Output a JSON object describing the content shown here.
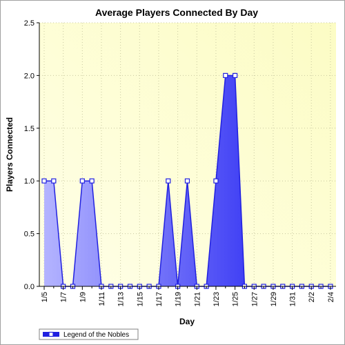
{
  "chart_data": {
    "type": "area",
    "title": "Average Players Connected By Day",
    "xlabel": "Day",
    "ylabel": "Players Connected",
    "ylim": [
      0,
      2.5
    ],
    "yticks": [
      "0.0",
      "0.5",
      "1.0",
      "1.5",
      "2.0",
      "2.5"
    ],
    "grid": true,
    "legend_position": "bottom-left",
    "x": [
      "1/5",
      "1/6",
      "1/7",
      "1/8",
      "1/9",
      "1/10",
      "1/11",
      "1/12",
      "1/13",
      "1/14",
      "1/15",
      "1/16",
      "1/17",
      "1/18",
      "1/19",
      "1/20",
      "1/21",
      "1/22",
      "1/23",
      "1/24",
      "1/25",
      "1/26",
      "1/27",
      "1/28",
      "1/29",
      "1/30",
      "1/31",
      "2/1",
      "2/2",
      "2/3",
      "2/4"
    ],
    "x_tick_labels": [
      "1/5",
      "1/7",
      "1/9",
      "1/11",
      "1/13",
      "1/15",
      "1/17",
      "1/19",
      "1/21",
      "1/23",
      "1/25",
      "1/27",
      "1/29",
      "1/31",
      "2/2",
      "2/4"
    ],
    "series": [
      {
        "name": "Legend of the Nobles",
        "values": [
          1,
          1,
          0,
          0,
          1,
          1,
          0,
          0,
          0,
          0,
          0,
          0,
          0,
          1,
          0,
          1,
          0,
          0,
          1,
          2,
          2,
          0,
          0,
          0,
          0,
          0,
          0,
          0,
          0,
          0,
          0
        ]
      }
    ],
    "colors": {
      "line": "#2020e0",
      "fill_light": "#b4b4ff",
      "fill_dark": "#1010f0",
      "plot_bg_light": "#ffffe8",
      "plot_bg_dark": "#fcfcc4",
      "marker_fill": "#ffffff"
    }
  }
}
